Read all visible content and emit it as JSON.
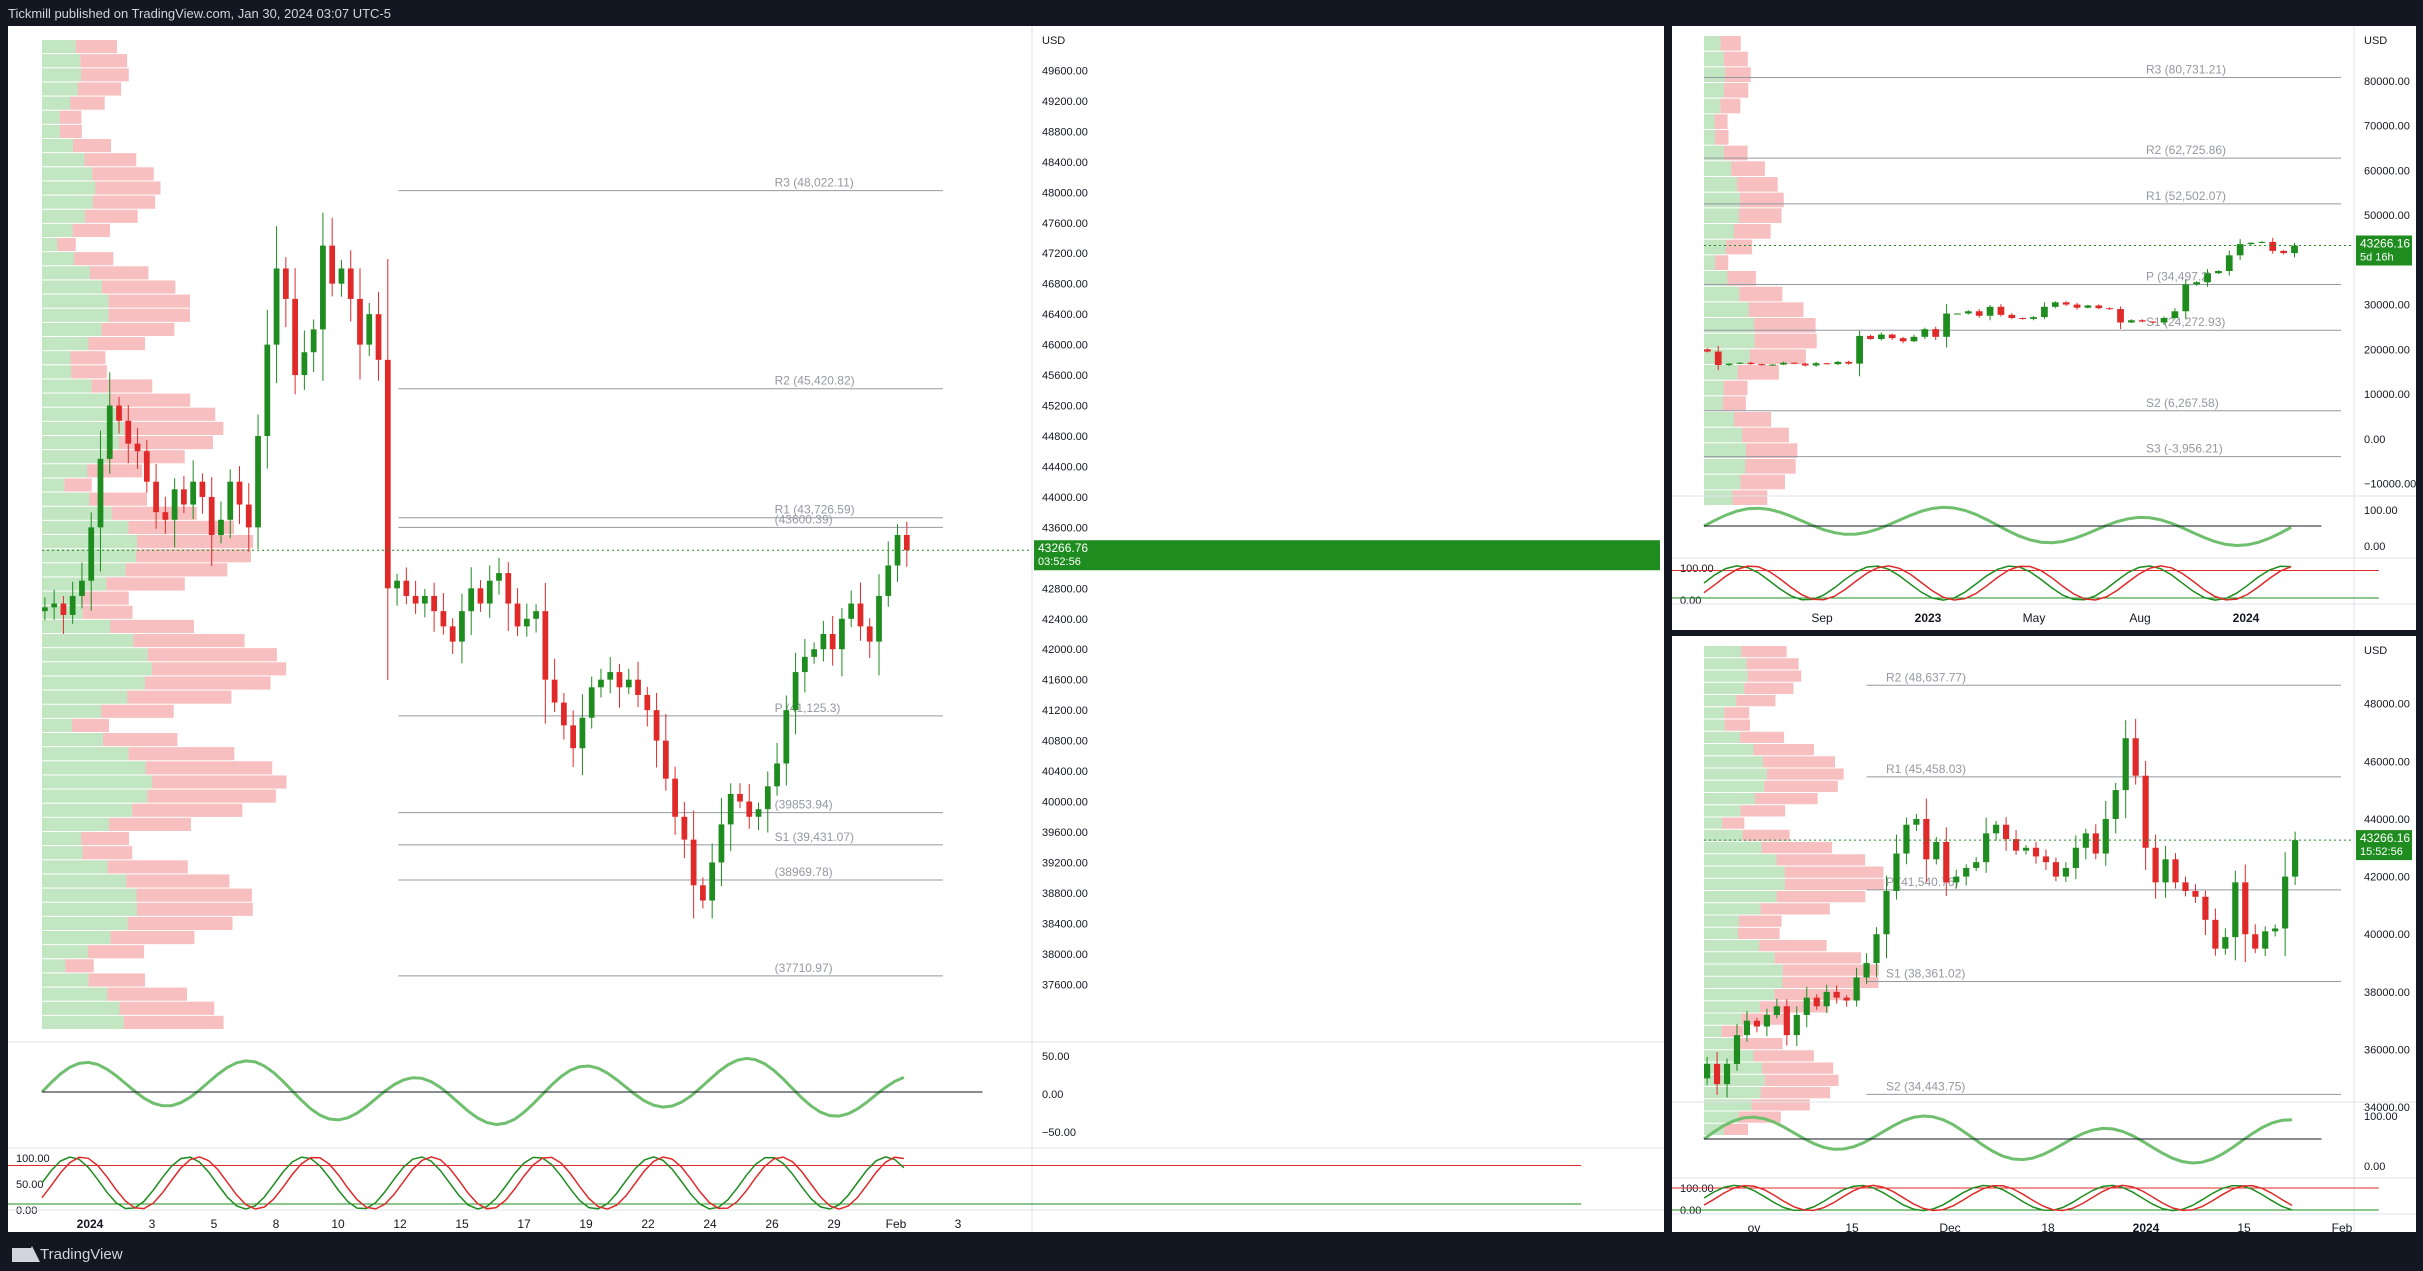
{
  "header": {
    "publisher_text": "Tickmill published on TradingView.com, Jan 30, 2024 03:07 UTC-5"
  },
  "footer": {
    "brand": "TradingView"
  },
  "colors": {
    "up": "#1e8c1e",
    "down": "#e02a2a",
    "bg": "#ffffff",
    "frame": "#131722"
  },
  "chart_data": [
    {
      "panel": "main-hourly",
      "type": "candlestick",
      "currency": "USD",
      "ylim": [
        37000,
        50000
      ],
      "y_ticks": [
        "49600.00",
        "49200.00",
        "48800.00",
        "48400.00",
        "48000.00",
        "47600.00",
        "47200.00",
        "46800.00",
        "46400.00",
        "46000.00",
        "45600.00",
        "45200.00",
        "44800.00",
        "44400.00",
        "44000.00",
        "43600.00",
        "43200.00",
        "42800.00",
        "42400.00",
        "42000.00",
        "41600.00",
        "41200.00",
        "40800.00",
        "40400.00",
        "40000.00",
        "39600.00",
        "39200.00",
        "38800.00",
        "38400.00",
        "38000.00",
        "37600.00"
      ],
      "x_labels": [
        "2024",
        "3",
        "5",
        "8",
        "10",
        "12",
        "15",
        "17",
        "19",
        "22",
        "24",
        "26",
        "29",
        "Feb",
        "3"
      ],
      "last_price": "43266.76",
      "countdown": "03:52:56",
      "levels": [
        {
          "label": "R3 (48,022.11)",
          "value": 48022.11
        },
        {
          "label": "R2 (45,420.82)",
          "value": 45420.82
        },
        {
          "label": "R1 (43,726.59)",
          "value": 43726.59
        },
        {
          "label": "P (41,125.3)",
          "value": 41125.3
        },
        {
          "label": "S1 (39,431.07)",
          "value": 39431.07
        },
        {
          "label": "(39853.94)",
          "value": 39853.94
        },
        {
          "label": "(38969.78)",
          "value": 38969.78
        },
        {
          "label": "(37710.97)",
          "value": 37710.97
        },
        {
          "label": "(43600.39)",
          "value": 43600.39
        }
      ],
      "close_path": [
        42500,
        42550,
        42600,
        42450,
        42700,
        42900,
        43600,
        44500,
        45200,
        45000,
        44700,
        44600,
        44200,
        43800,
        43700,
        44100,
        43900,
        44200,
        44000,
        43500,
        43700,
        44200,
        43900,
        43600,
        44800,
        46000,
        47000,
        46600,
        45600,
        45900,
        46200,
        47300,
        46800,
        47000,
        46600,
        46000,
        46400,
        45800,
        42800,
        42900,
        42700,
        42600,
        42700,
        42500,
        42300,
        42100,
        42500,
        42800,
        42600,
        42900,
        43000,
        42600,
        42300,
        42400,
        42500,
        41600,
        41300,
        41000,
        40700,
        41100,
        41500,
        41600,
        41700,
        41500,
        41600,
        41400,
        41200,
        40800,
        40300,
        39800,
        39500,
        38900,
        38700,
        39200,
        39700,
        40100,
        40000,
        39800,
        39900,
        40200,
        40500,
        41200,
        41700,
        41900,
        42000,
        42200,
        42000,
        42400,
        42600,
        42300,
        42100,
        42700,
        43100,
        43500,
        43300
      ],
      "oscillator": {
        "ticks": [
          "50.00",
          "0.00",
          "−50.00"
        ]
      },
      "stochastic": {
        "ticks": [
          "100.00",
          "50.00",
          "0.00"
        ]
      }
    },
    {
      "panel": "weekly",
      "type": "candlestick",
      "currency": "USD",
      "ylim": [
        -15000,
        90000
      ],
      "y_ticks": [
        "80000.00",
        "70000.00",
        "60000.00",
        "50000.00",
        "40000.00",
        "30000.00",
        "20000.00",
        "10000.00",
        "0.00",
        "−10000.00"
      ],
      "x_labels": [
        "Sep",
        "2023",
        "May",
        "Aug",
        "2024"
      ],
      "last_price": "43266.16",
      "countdown": "5d 16h",
      "levels": [
        {
          "label": "R3 (80,731.21)",
          "value": 80731.21
        },
        {
          "label": "R2 (62,725.86)",
          "value": 62725.86
        },
        {
          "label": "R1 (52,502.07)",
          "value": 52502.07
        },
        {
          "label": "P (34,497.2)",
          "value": 34497.2
        },
        {
          "label": "S1 (24,272.93)",
          "value": 24272.93
        },
        {
          "label": "S2 (6,267.58)",
          "value": 6267.58
        },
        {
          "label": "S3 (-3,956.21)",
          "value": -3956.21
        }
      ],
      "close_path": [
        20000,
        19500,
        16500,
        16800,
        17000,
        16700,
        16500,
        16600,
        17000,
        16800,
        16400,
        16900,
        16700,
        17200,
        16800,
        23000,
        22300,
        23300,
        22500,
        21800,
        22800,
        24500,
        22800,
        28000,
        28000,
        28500,
        27500,
        29500,
        27700,
        27000,
        26800,
        27200,
        29500,
        30500,
        30000,
        29300,
        29800,
        29200,
        29000,
        26000,
        26500,
        26200,
        26000,
        27000,
        28500,
        34500,
        35000,
        37000,
        37500,
        41000,
        43500,
        43800,
        44000,
        42000,
        41500,
        43200
      ],
      "oscillator": {
        "ticks": [
          "100.00",
          "0.00"
        ]
      },
      "stochastic": {
        "ticks": [
          "100.00",
          "0.00"
        ]
      }
    },
    {
      "panel": "daily",
      "type": "candlestick",
      "currency": "USD",
      "ylim": [
        33000,
        50000
      ],
      "y_ticks": [
        "48000.00",
        "46000.00",
        "44000.00",
        "42000.00",
        "40000.00",
        "38000.00",
        "36000.00",
        "34000.00"
      ],
      "x_labels": [
        "ov",
        "15",
        "Dec",
        "18",
        "2024",
        "15",
        "Feb"
      ],
      "last_price": "43266.16",
      "countdown": "15:52:56",
      "levels": [
        {
          "label": "R2 (48,637.77)",
          "value": 48637.77
        },
        {
          "label": "R1 (45,458.03)",
          "value": 45458.03
        },
        {
          "label": "P (41,540.76)",
          "value": 41540.76
        },
        {
          "label": "S1 (38,361.02)",
          "value": 38361.02
        },
        {
          "label": "S2 (34,443.75)",
          "value": 34443.75
        }
      ],
      "close_path": [
        35000,
        35500,
        34800,
        35500,
        36500,
        37000,
        36800,
        37200,
        37500,
        36500,
        37200,
        37800,
        37500,
        38000,
        37800,
        37700,
        38500,
        39000,
        40000,
        41500,
        42800,
        43800,
        44000,
        42600,
        43200,
        41800,
        42000,
        42300,
        42500,
        43500,
        43800,
        43300,
        42900,
        43000,
        42700,
        42500,
        42000,
        42300,
        43000,
        43500,
        42800,
        44000,
        45000,
        46800,
        45500,
        43000,
        41800,
        42600,
        41800,
        41500,
        41300,
        40500,
        39500,
        39900,
        41800,
        40000,
        39500,
        40100,
        40200,
        42000,
        43266
      ],
      "oscillator": {
        "ticks": [
          "100.00",
          "0.00"
        ]
      },
      "stochastic": {
        "ticks": [
          "100.00",
          "0.00"
        ]
      }
    }
  ]
}
